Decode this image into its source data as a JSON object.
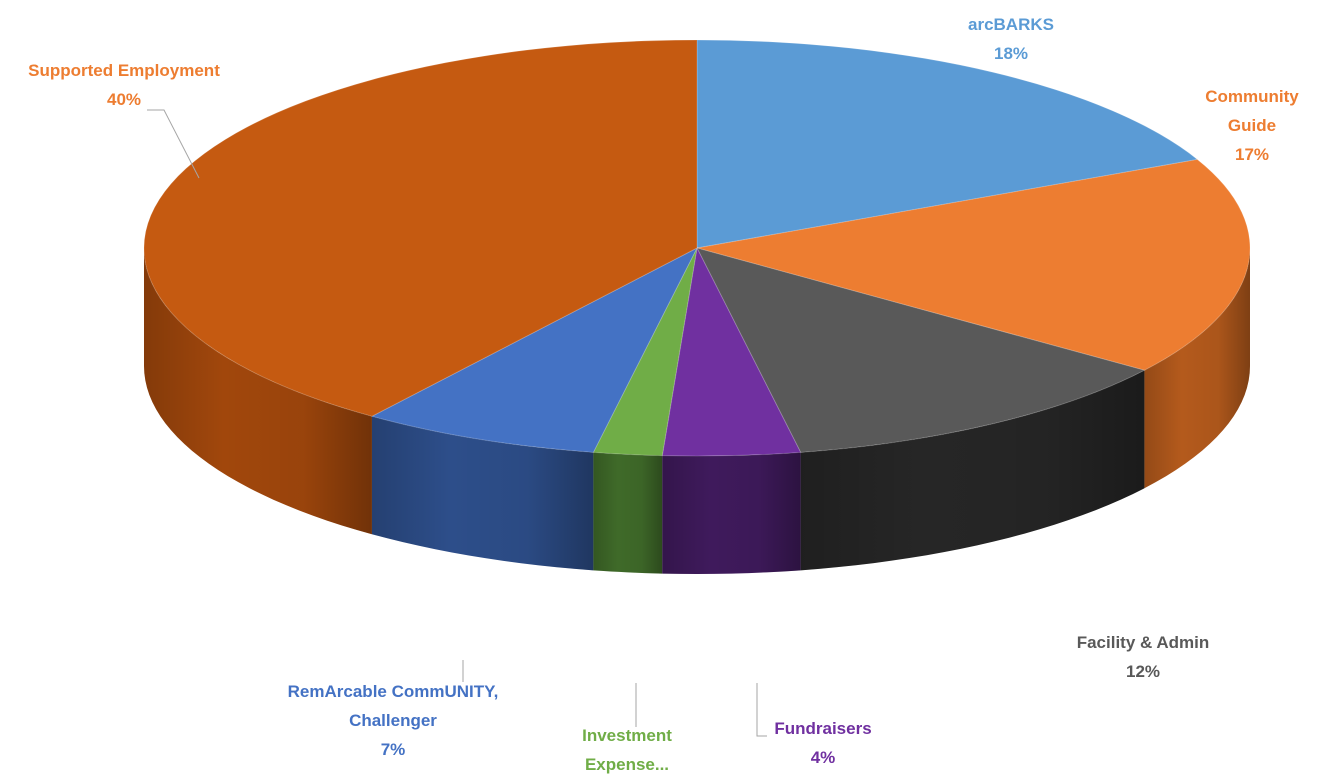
{
  "chart_data": {
    "type": "pie",
    "style": "3d-pie",
    "title": "",
    "legend": "none",
    "slices": [
      {
        "label_lines": [
          "arcBARKS"
        ],
        "value": 18,
        "percent_label": "18%",
        "color": "#5B9BD5",
        "side_color": "#3E6F9E"
      },
      {
        "label_lines": [
          "Community",
          "Guide"
        ],
        "value": 17,
        "percent_label": "17%",
        "color": "#ED7D31",
        "side_color": "#B45A1C"
      },
      {
        "label_lines": [
          "Facility & Admin"
        ],
        "value": 12,
        "percent_label": "12%",
        "color": "#595959",
        "side_color": "#262626"
      },
      {
        "label_lines": [
          "Fundraisers"
        ],
        "value": 4,
        "percent_label": "4%",
        "color": "#7030A0",
        "side_color": "#3F1A5C"
      },
      {
        "label_lines": [
          "Investment",
          "Expense..."
        ],
        "value": 2,
        "percent_label": "",
        "color": "#70AD47",
        "side_color": "#3F6A29"
      },
      {
        "label_lines": [
          "RemArcable CommUNITY,",
          "Challenger"
        ],
        "value": 7,
        "percent_label": "7%",
        "color": "#4472C4",
        "side_color": "#2D4E8A"
      },
      {
        "label_lines": [
          "Supported Employment"
        ],
        "value": 40,
        "percent_label": "40%",
        "color": "#C55A11",
        "side_color": "#A1470C"
      }
    ],
    "label_colors": [
      "#5B9BD5",
      "#ED7D31",
      "#595959",
      "#7030A0",
      "#70AD47",
      "#4472C4",
      "#ED7D31"
    ]
  }
}
